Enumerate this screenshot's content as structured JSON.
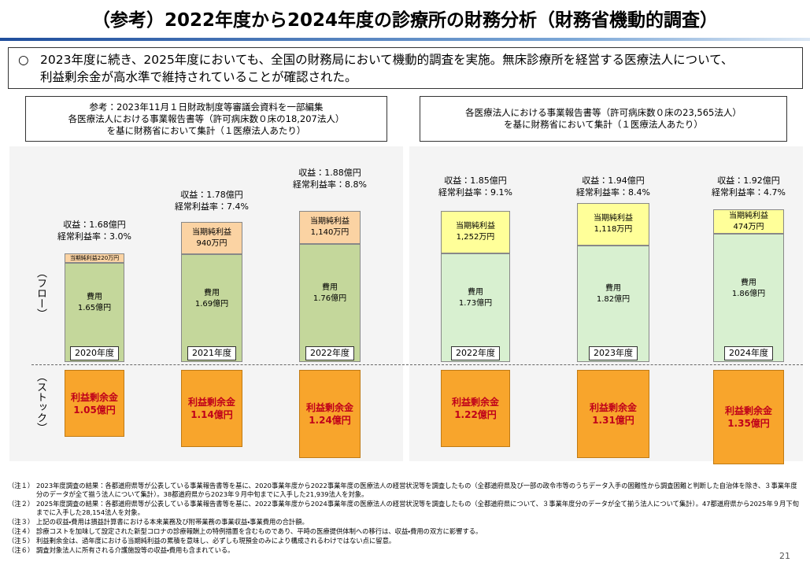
{
  "title": "（参考）2022年度から2024年度の診療所の財務分析（財務省機動的調査）",
  "summary": {
    "marker": "○",
    "lines": [
      "2023年度に続き、2025年度においても、全国の財務局において機動的調査を実施。無床診療所を経営する医療法人について、",
      "利益剰余金が高水準で維持されていることが確認された。"
    ]
  },
  "left_header": [
    "参考：2023年11月１日財政制度等審議会資料を一部編集",
    "各医療法人における事業報告書等（許可病床数０床の18,207法人）",
    "を基に財務省において集計（１医療法人あたり）"
  ],
  "right_header": [
    "各医療法人における事業報告書等（許可病床数０床の23,565法人）",
    "を基に財務省において集計（１医療法人あたり）"
  ],
  "side_labels": {
    "flow": "（フロー）",
    "stock": "（ストック）"
  },
  "columns": [
    {
      "revenue": "収益：1.68億円",
      "margin": "経常利益率：3.0%",
      "profit": [
        "当期純利益220万円"
      ],
      "expense": [
        "費用",
        "1.65億円"
      ],
      "year": "2020年度",
      "stock": [
        "利益剰余金",
        "1.05億円"
      ]
    },
    {
      "revenue": "収益：1.78億円",
      "margin": "経常利益率：7.4%",
      "profit": [
        "当期純利益",
        "940万円"
      ],
      "expense": [
        "費用",
        "1.69億円"
      ],
      "year": "2021年度",
      "stock": [
        "利益剰余金",
        "1.14億円"
      ]
    },
    {
      "revenue": "収益：1.88億円",
      "margin": "経常利益率：8.8%",
      "profit": [
        "当期純利益",
        "1,140万円"
      ],
      "expense": [
        "費用",
        "1.76億円"
      ],
      "year": "2022年度",
      "stock": [
        "利益剰余金",
        "1.24億円"
      ]
    },
    {
      "revenue": "収益：1.85億円",
      "margin": "経常利益率：9.1%",
      "profit": [
        "当期純利益",
        "1,252万円"
      ],
      "expense": [
        "費用",
        "1.73億円"
      ],
      "year": "2022年度",
      "stock": [
        "利益剰余金",
        "1.22億円"
      ]
    },
    {
      "revenue": "収益：1.94億円",
      "margin": "経常利益率：8.4%",
      "profit": [
        "当期純利益",
        "1,118万円"
      ],
      "expense": [
        "費用",
        "1.82億円"
      ],
      "year": "2023年度",
      "stock": [
        "利益剰余金",
        "1.31億円"
      ]
    },
    {
      "revenue": "収益：1.92億円",
      "margin": "経常利益率：4.7%",
      "profit": [
        "当期純利益",
        "474万円"
      ],
      "expense": [
        "費用",
        "1.86億円"
      ],
      "year": "2024年度",
      "stock": [
        "利益剰余金",
        "1.35億円"
      ]
    }
  ],
  "notes": [
    {
      "label": "（注１）",
      "text": "2023年度調査の結果：各都道府県等が公表している事業報告書等を基に、2020事業年度から2022事業年度の医療法人の経営状況等を調査したもの（全都道府県及び一部の政令市等のうちデータ入手の困難性から調査困難と判断した自治体を除き、３事業年度分のデータが全て揃う法人について集計）。38都道府県から2023年９月中旬までに入手した21,939法人を対象。"
    },
    {
      "label": "（注２）",
      "text": "2025年度調査の結果：各都道府県等が公表している事業報告書等を基に、2022事業年度から2024事業年度の医療法人の経営状況等を調査したもの（全都道府県について、３事業年度分のデータが全て揃う法人について集計）。47都道府県から2025年９月下旬までに入手した28,154法人を対象。"
    },
    {
      "label": "（注３）",
      "text": "上記の収益・費用は損益計算書における本来業務及び附帯業務の事業収益・事業費用の合計額。"
    },
    {
      "label": "（注４）",
      "text": "診療コストを加味して設定された新型コロナの診療報酬上の特例措置を含むものであり、平時の医療提供体制への移行は、収益・費用の双方に影響する。"
    },
    {
      "label": "（注５）",
      "text": "利益剰余金は、過年度における当期純利益の累積を意味し、必ずしも現預金のみにより構成されるわけではない点に留意。"
    },
    {
      "label": "（注６）",
      "text": "調査対象法人に所有される介護施設等の収益・費用も含まれている。"
    }
  ],
  "page_number": "21"
}
